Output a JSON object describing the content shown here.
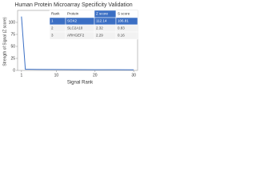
{
  "chart_data": {
    "type": "line",
    "title": "Human Protein Microarray Specificity Validation",
    "x_label": "Signal Rank",
    "y_label": "Strength of Signal (Z score)",
    "x": [
      1,
      2,
      3,
      5,
      10,
      15,
      20,
      25,
      30
    ],
    "series": [
      {
        "name": "Z score",
        "color": "#3b6fc4",
        "values": [
          112.14,
          2.32,
          2.29,
          2,
          1.8,
          1.6,
          1.5,
          1.4,
          1.3
        ]
      }
    ],
    "xlim": [
      0,
      31
    ],
    "xticks": [
      1,
      10,
      20,
      30
    ],
    "ylim": [
      0,
      125
    ],
    "yticks": [
      0,
      25,
      50,
      75,
      100
    ]
  },
  "table": {
    "header": [
      "Rank",
      "Protein",
      "Z score",
      "S score"
    ],
    "rows": [
      [
        "1",
        "SOX2",
        "112.14",
        "106.81"
      ],
      [
        "2",
        "SLC2A10",
        "2.32",
        "0.83"
      ],
      [
        "3",
        "ARHGEF2",
        "2.29",
        "0.16"
      ]
    ]
  }
}
